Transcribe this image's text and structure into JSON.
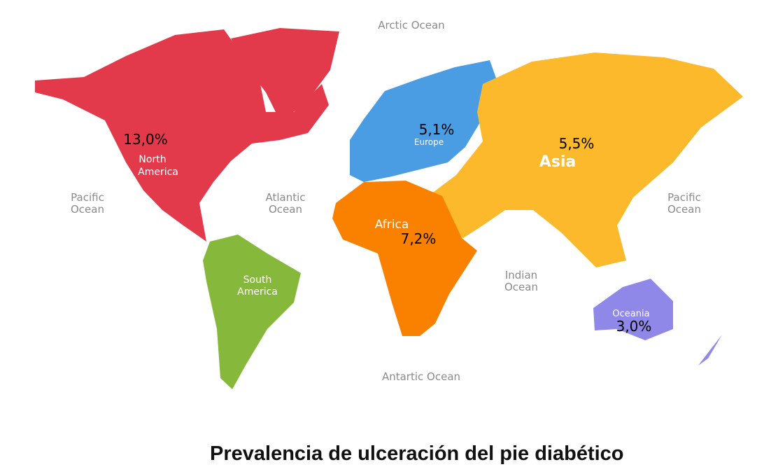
{
  "title": "Prevalencia de ulceración del pie diabético",
  "oceans": {
    "arctic": "Arctic Ocean",
    "pacific_west": [
      "Pacific",
      "Ocean"
    ],
    "atlantic": [
      "Atlantic",
      "Ocean"
    ],
    "indian": [
      "Indian",
      "Ocean"
    ],
    "pacific_east": [
      "Pacific",
      "Ocean"
    ],
    "antarctic": "Antartic Ocean"
  },
  "regions": {
    "north_america": {
      "name": [
        "North",
        "America"
      ],
      "value": "13,0%",
      "color": "#e23a4b"
    },
    "south_america": {
      "name": [
        "South",
        "America"
      ],
      "color": "#86b93b"
    },
    "europe": {
      "name": "Europe",
      "value": "5,1%",
      "color": "#4b9de3"
    },
    "asia": {
      "name": "Asia",
      "value": "5,5%",
      "color": "#fbb92b"
    },
    "africa": {
      "name": "Africa",
      "value": "7,2%",
      "color": "#fa8000"
    },
    "oceania": {
      "name": "Oceania",
      "value": "3,0%",
      "color": "#8f88e8"
    }
  }
}
